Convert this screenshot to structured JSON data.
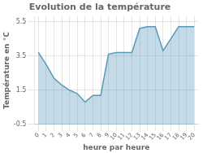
{
  "chart_data": {
    "type": "area",
    "title": "Evolution de la température",
    "xlabel": "heure par heure",
    "ylabel": "Température en °C",
    "x": [
      0,
      1,
      2,
      3,
      4,
      5,
      6,
      7,
      8,
      9,
      10,
      11,
      12,
      13,
      14,
      15,
      16,
      17,
      18,
      19,
      20
    ],
    "values": [
      3.7,
      3.0,
      2.2,
      1.8,
      1.5,
      1.3,
      0.8,
      1.2,
      1.2,
      3.6,
      3.7,
      3.7,
      3.7,
      5.1,
      5.2,
      5.2,
      3.8,
      4.5,
      5.2,
      5.2,
      5.2
    ],
    "color": "#5599bb",
    "xlim": [
      -0.5,
      20.5
    ],
    "xticks": [
      0,
      1,
      2,
      3,
      4,
      5,
      6,
      7,
      8,
      9,
      10,
      11,
      12,
      13,
      14,
      15,
      16,
      17,
      18,
      19,
      20
    ],
    "ylim": [
      -0.5,
      5.8
    ],
    "yticks": [
      -0.5,
      1.5,
      3.5,
      5.5
    ],
    "grid": true
  }
}
